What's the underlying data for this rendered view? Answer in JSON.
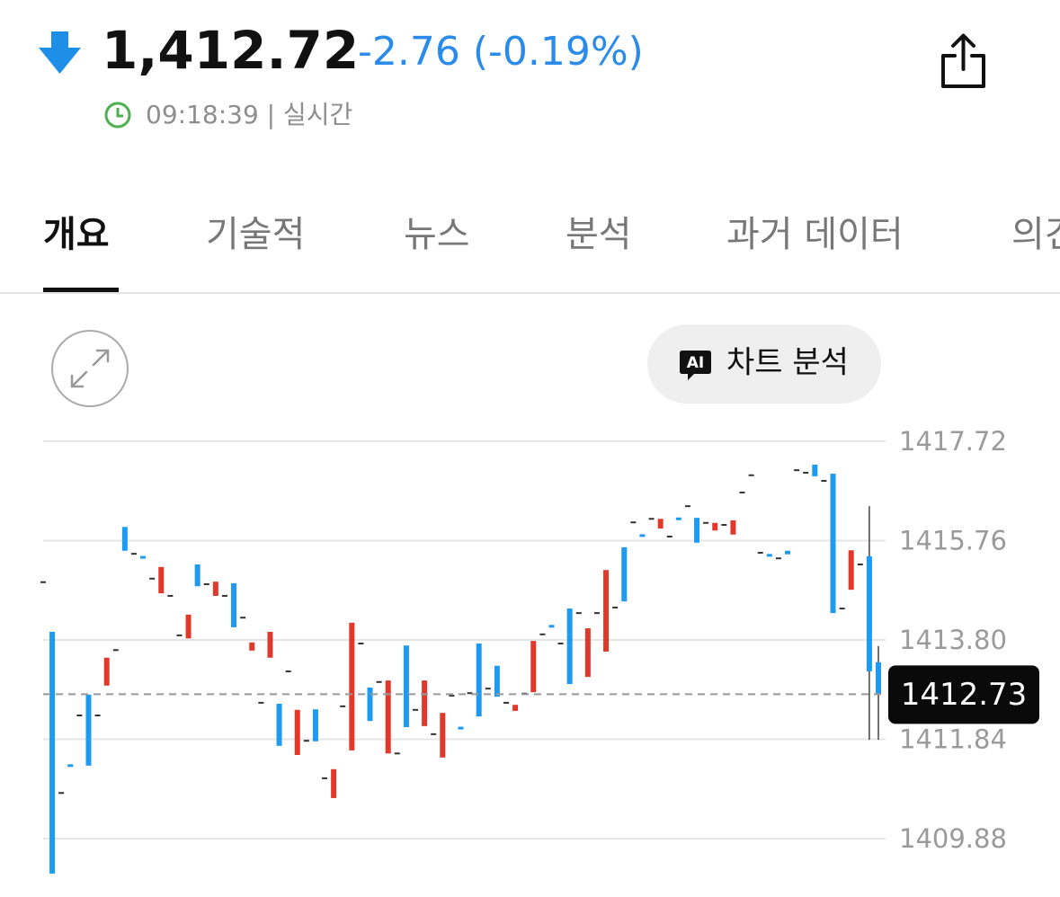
{
  "header": {
    "price": "1,412.72",
    "change": "-2.76 (-0.19%)",
    "time": "09:18:39 | 실시간"
  },
  "tabs": [
    "개요",
    "기술적",
    "뉴스",
    "분석",
    "과거 데이터",
    "의견"
  ],
  "ai_badge": "AI",
  "chart_button": "차트 분석",
  "chart": {
    "type": "candlestick",
    "ylim": [
      1409.88,
      1417.72
    ],
    "yticks": [
      1409.88,
      1411.84,
      {
        "value": 1413.8,
        "label": "1413.80"
      },
      1415.76,
      1417.72
    ],
    "grid": true,
    "up_color": "#e0392b",
    "down_color": "#1e9bf0",
    "flat_color": "#333333",
    "last": 1412.73,
    "candles": [
      {
        "open": 1414.94,
        "close": 1414.94
      },
      {
        "open": 1413.96,
        "close": 1409.19
      },
      {
        "open": 1410.78,
        "close": 1410.78
      },
      {
        "open": 1411.34,
        "close": 1411.3
      },
      {
        "open": 1412.31,
        "close": 1412.31
      },
      {
        "open": 1412.72,
        "close": 1411.32
      },
      {
        "open": 1412.31,
        "close": 1412.31
      },
      {
        "open": 1412.9,
        "close": 1413.45
      },
      {
        "open": 1413.6,
        "close": 1413.6
      },
      {
        "open": 1416.03,
        "close": 1415.56
      },
      {
        "open": 1415.5,
        "close": 1415.5
      },
      {
        "open": 1415.45,
        "close": 1415.41
      },
      {
        "open": 1415.01,
        "close": 1415.01
      },
      {
        "open": 1414.72,
        "close": 1415.24
      },
      {
        "open": 1414.67,
        "close": 1414.67
      },
      {
        "open": 1413.89,
        "close": 1413.89
      },
      {
        "open": 1413.83,
        "close": 1414.3
      },
      {
        "open": 1415.29,
        "close": 1414.86
      },
      {
        "open": 1414.9,
        "close": 1414.9
      },
      {
        "open": 1414.67,
        "close": 1414.95
      },
      {
        "open": 1414.67,
        "close": 1414.67
      },
      {
        "open": 1414.92,
        "close": 1414.05
      },
      {
        "open": 1414.24,
        "close": 1414.24
      },
      {
        "open": 1413.59,
        "close": 1413.75
      },
      {
        "open": 1412.56,
        "close": 1412.56
      },
      {
        "open": 1413.45,
        "close": 1413.96
      },
      {
        "open": 1412.54,
        "close": 1411.71
      },
      {
        "open": 1413.18,
        "close": 1413.18
      },
      {
        "open": 1411.53,
        "close": 1412.42
      },
      {
        "open": 1411.81,
        "close": 1411.81
      },
      {
        "open": 1412.43,
        "close": 1411.8
      },
      {
        "open": 1411.07,
        "close": 1411.07
      },
      {
        "open": 1410.68,
        "close": 1411.25
      },
      {
        "open": 1412.49,
        "close": 1412.49
      },
      {
        "open": 1411.62,
        "close": 1414.14
      },
      {
        "open": 1413.73,
        "close": 1413.73
      },
      {
        "open": 1412.86,
        "close": 1412.2
      },
      {
        "open": 1412.97,
        "close": 1412.97
      },
      {
        "open": 1411.56,
        "close": 1413.0
      },
      {
        "open": 1411.56,
        "close": 1411.56
      },
      {
        "open": 1413.69,
        "close": 1412.08
      },
      {
        "open": 1412.42,
        "close": 1412.42
      },
      {
        "open": 1412.1,
        "close": 1413.0
      },
      {
        "open": 1411.94,
        "close": 1411.94
      },
      {
        "open": 1411.48,
        "close": 1412.36
      },
      {
        "open": 1412.7,
        "close": 1412.7
      },
      {
        "open": 1412.08,
        "close": 1412.04
      },
      {
        "open": 1412.75,
        "close": 1412.75
      },
      {
        "open": 1413.73,
        "close": 1412.29
      },
      {
        "open": 1412.84,
        "close": 1412.84
      },
      {
        "open": 1413.29,
        "close": 1412.68
      },
      {
        "open": 1412.56,
        "close": 1412.56
      },
      {
        "open": 1412.4,
        "close": 1412.52
      },
      {
        "open": 1412.74,
        "close": 1412.74
      },
      {
        "open": 1412.77,
        "close": 1413.78
      },
      {
        "open": 1413.91,
        "close": 1413.91
      },
      {
        "open": 1414.09,
        "close": 1414.05
      },
      {
        "open": 1413.73,
        "close": 1413.73
      },
      {
        "open": 1414.42,
        "close": 1412.93
      },
      {
        "open": 1414.33,
        "close": 1414.33
      },
      {
        "open": 1413.07,
        "close": 1414.03
      },
      {
        "open": 1414.33,
        "close": 1414.33
      },
      {
        "open": 1413.57,
        "close": 1415.18
      },
      {
        "open": 1414.44,
        "close": 1414.44
      },
      {
        "open": 1415.63,
        "close": 1414.56
      },
      {
        "open": 1416.12,
        "close": 1416.12
      },
      {
        "open": 1415.88,
        "close": 1415.84
      },
      {
        "open": 1416.19,
        "close": 1416.19
      },
      {
        "open": 1416.0,
        "close": 1416.19
      },
      {
        "open": 1415.84,
        "close": 1415.84
      },
      {
        "open": 1416.21,
        "close": 1416.17
      },
      {
        "open": 1416.44,
        "close": 1416.44
      },
      {
        "open": 1416.21,
        "close": 1415.72
      },
      {
        "open": 1416.11,
        "close": 1416.11
      },
      {
        "open": 1415.96,
        "close": 1416.11
      },
      {
        "open": 1416.07,
        "close": 1416.07
      },
      {
        "open": 1415.88,
        "close": 1416.16
      },
      {
        "open": 1416.71,
        "close": 1416.71
      },
      {
        "open": 1417.05,
        "close": 1417.05
      },
      {
        "open": 1415.52,
        "close": 1415.52
      },
      {
        "open": 1415.49,
        "close": 1415.45
      },
      {
        "open": 1415.41,
        "close": 1415.41
      },
      {
        "open": 1415.56,
        "close": 1415.49
      },
      {
        "open": 1417.15,
        "close": 1417.15
      },
      {
        "open": 1417.1,
        "close": 1417.1
      },
      {
        "open": 1417.26,
        "close": 1417.03
      },
      {
        "open": 1416.94,
        "close": 1416.94
      },
      {
        "open": 1417.08,
        "close": 1414.33
      },
      {
        "open": 1414.42,
        "close": 1414.42
      },
      {
        "open": 1414.79,
        "close": 1415.57
      },
      {
        "open": 1415.29,
        "close": 1415.29
      },
      {
        "open": 1415.45,
        "close": 1413.18,
        "high": 1416.44,
        "low": 1411.83
      },
      {
        "open": 1413.36,
        "close": 1412.73,
        "high": 1413.68,
        "low": 1411.83
      }
    ]
  }
}
